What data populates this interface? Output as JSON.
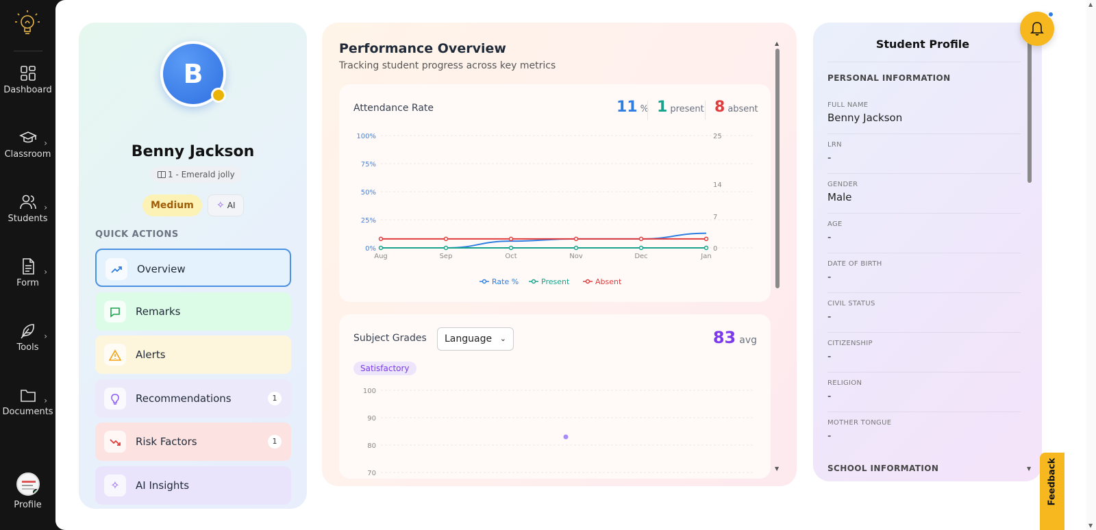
{
  "sidebar": {
    "items": [
      {
        "label": "Dashboard"
      },
      {
        "label": "Classroom"
      },
      {
        "label": "Students"
      },
      {
        "label": "Form"
      },
      {
        "label": "Tools"
      },
      {
        "label": "Documents"
      }
    ],
    "profile_label": "Profile"
  },
  "student": {
    "initial": "B",
    "name": "Benny Jackson",
    "section": "1 - Emerald jolly",
    "risk_level": "Medium",
    "ai_label": "AI"
  },
  "quick_actions": {
    "title": "QUICK ACTIONS",
    "items": [
      {
        "label": "Overview",
        "icon": "trend-up-icon"
      },
      {
        "label": "Remarks",
        "icon": "message-icon"
      },
      {
        "label": "Alerts",
        "icon": "warning-icon"
      },
      {
        "label": "Recommendations",
        "icon": "lightbulb-icon",
        "badge": "1"
      },
      {
        "label": "Risk Factors",
        "icon": "trend-down-icon",
        "badge": "1"
      },
      {
        "label": "AI Insights",
        "icon": "sparkles-icon"
      }
    ]
  },
  "performance": {
    "title": "Performance Overview",
    "subtitle": "Tracking student progress across key metrics"
  },
  "attendance": {
    "title": "Attendance Rate",
    "rate_value": "11",
    "rate_unit": "%",
    "present_value": "1",
    "present_unit": "present",
    "absent_value": "8",
    "absent_unit": "absent"
  },
  "grades": {
    "title": "Subject Grades",
    "selected_subject": "Language",
    "avg_value": "83",
    "avg_unit": "avg",
    "status": "Satisfactory"
  },
  "chart_data": [
    {
      "type": "line",
      "categories": [
        "Aug",
        "Sep",
        "Oct",
        "Nov",
        "Dec",
        "Jan"
      ],
      "y_left_ticks": [
        "100%",
        "75%",
        "50%",
        "25%",
        "0%"
      ],
      "y_right_ticks": [
        "25",
        "14",
        "7",
        "0"
      ],
      "ylim_left": [
        0,
        100
      ],
      "ylim_right": [
        0,
        25
      ],
      "series": [
        {
          "name": "Rate %",
          "color": "#2f7de1",
          "axis": "left",
          "values": [
            0,
            0,
            6,
            8,
            8,
            13
          ]
        },
        {
          "name": "Present",
          "color": "#17a38b",
          "axis": "right",
          "values": [
            0,
            0,
            0,
            0,
            0,
            0
          ]
        },
        {
          "name": "Absent",
          "color": "#e23b3b",
          "axis": "right",
          "values": [
            2,
            2,
            2,
            2,
            2,
            2
          ]
        }
      ],
      "legend": "bottom",
      "grid": true
    },
    {
      "type": "scatter",
      "y_ticks": [
        "100",
        "90",
        "80",
        "70"
      ],
      "ylim": [
        70,
        100
      ],
      "series": [
        {
          "color": "#a78bfa",
          "values": [
            83
          ]
        }
      ],
      "grid": true
    }
  ],
  "profile_panel": {
    "title": "Student Profile",
    "section_personal": "PERSONAL INFORMATION",
    "fields": [
      {
        "label": "FULL NAME",
        "value": "Benny Jackson"
      },
      {
        "label": "LRN",
        "value": "-"
      },
      {
        "label": "GENDER",
        "value": "Male"
      },
      {
        "label": "AGE",
        "value": "-"
      },
      {
        "label": "DATE OF BIRTH",
        "value": "-"
      },
      {
        "label": "CIVIL STATUS",
        "value": "-"
      },
      {
        "label": "CITIZENSHIP",
        "value": "-"
      },
      {
        "label": "RELIGION",
        "value": "-"
      },
      {
        "label": "MOTHER TONGUE",
        "value": "-"
      }
    ],
    "section_school": "SCHOOL INFORMATION"
  },
  "feedback_label": "Feedback",
  "colors": {
    "accent_blue": "#2f7de1",
    "accent_yellow": "#f6b81e",
    "present_green": "#17a38b",
    "absent_red": "#e23b3b",
    "grade_purple": "#7c3aed"
  }
}
